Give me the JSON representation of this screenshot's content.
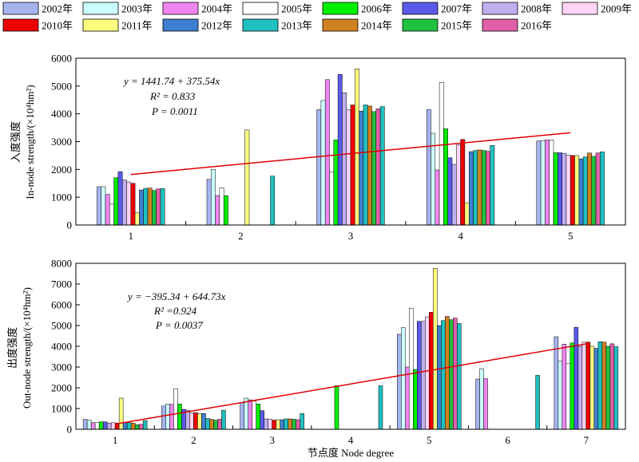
{
  "legend": {
    "years": [
      "2002年",
      "2003年",
      "2004年",
      "2005年",
      "2006年",
      "2007年",
      "2008年",
      "2009年",
      "2010年",
      "2011年",
      "2012年",
      "2013年",
      "2014年",
      "2015年",
      "2016年"
    ],
    "colors": [
      "#a6b4f0",
      "#ccffff",
      "#f086f0",
      "#ffffff",
      "#00ee00",
      "#5a5ae8",
      "#c0b0f0",
      "#ffd4f4",
      "#ee0000",
      "#ffff80",
      "#3f7fd0",
      "#20c0c0",
      "#d08020",
      "#20c040",
      "#e060a8"
    ]
  },
  "chart_data": [
    {
      "type": "bar",
      "ylabel_cn": "入度强度",
      "ylabel_en": "In-node strength/(×10⁴hm²)",
      "ylim": [
        0,
        6000
      ],
      "yticks": [
        "0",
        "1000",
        "2000",
        "3000",
        "4000",
        "5000",
        "6000"
      ],
      "categories": [
        "1",
        "2",
        "3",
        "4",
        "5"
      ],
      "series_values": [
        [
          1380,
          1640,
          4150,
          4150,
          3020
        ],
        [
          1380,
          2000,
          4480,
          3300,
          3040
        ],
        [
          1100,
          1060,
          5230,
          1980,
          3060
        ],
        [
          760,
          1340,
          1900,
          5130,
          3060
        ],
        [
          1700,
          1050,
          3060,
          3460,
          2600
        ],
        [
          1920,
          null,
          5420,
          2420,
          2600
        ],
        [
          1620,
          null,
          4760,
          2180,
          2580
        ],
        [
          1550,
          null,
          4150,
          2880,
          2520
        ],
        [
          1500,
          null,
          4320,
          3080,
          2500
        ],
        [
          440,
          3420,
          5620,
          800,
          2500
        ],
        [
          1260,
          null,
          4100,
          2640,
          2380
        ],
        [
          1320,
          null,
          4320,
          2680,
          2450
        ],
        [
          1330,
          null,
          4280,
          2700,
          2590
        ],
        [
          1240,
          null,
          4080,
          2680,
          2470
        ],
        [
          1300,
          null,
          4180,
          2650,
          2590
        ],
        [
          1310,
          1760,
          4260,
          2860,
          2630
        ]
      ],
      "trend": {
        "x": [
          1,
          5
        ],
        "y": [
          1817.28,
          3319.44
        ]
      },
      "annotation": {
        "equation": "y = 1441.74 + 375.54x",
        "r2": "R² = 0.833",
        "p": "P = 0.0011"
      }
    },
    {
      "type": "bar",
      "xlabel": "节点度 Node degree",
      "ylabel_cn": "出度强度",
      "ylabel_en": "Out-node strength/(×10⁴hm²)",
      "ylim": [
        0,
        8000
      ],
      "yticks": [
        "0",
        "1000",
        "2000",
        "3000",
        "4000",
        "5000",
        "6000",
        "7000",
        "8000"
      ],
      "categories": [
        "1",
        "2",
        "3",
        "4",
        "5",
        "6",
        "7"
      ],
      "series_values": [
        [
          480,
          1120,
          1280,
          null,
          4580,
          2420,
          4460
        ],
        [
          440,
          1220,
          1500,
          null,
          4900,
          2920,
          3280
        ],
        [
          320,
          1200,
          1420,
          null,
          3000,
          2440,
          4100
        ],
        [
          320,
          1960,
          1360,
          null,
          5840,
          null,
          3160
        ],
        [
          360,
          1220,
          1220,
          2100,
          2880,
          null,
          4160
        ],
        [
          360,
          960,
          900,
          null,
          5200,
          null,
          4920
        ],
        [
          300,
          920,
          500,
          null,
          5200,
          null,
          4000
        ],
        [
          320,
          800,
          480,
          null,
          5420,
          null,
          4200
        ],
        [
          300,
          800,
          440,
          null,
          5640,
          null,
          4200
        ],
        [
          1500,
          740,
          460,
          null,
          7760,
          null,
          4000
        ],
        [
          320,
          760,
          460,
          null,
          5000,
          null,
          3900
        ],
        [
          320,
          520,
          500,
          null,
          5240,
          null,
          4220
        ],
        [
          300,
          480,
          500,
          null,
          5440,
          null,
          4200
        ],
        [
          220,
          440,
          480,
          null,
          5280,
          null,
          4000
        ],
        [
          240,
          480,
          460,
          null,
          5360,
          null,
          4120
        ],
        [
          420,
          920,
          760,
          2100,
          5100,
          2600,
          3980
        ]
      ],
      "trend": {
        "x": [
          1,
          7
        ],
        "y": [
          249.39,
          4117.77
        ]
      },
      "annotation": {
        "equation": "y = −395.34 + 644.73x",
        "r2": "R² =0.924",
        "p": "P = 0.0037"
      }
    }
  ]
}
